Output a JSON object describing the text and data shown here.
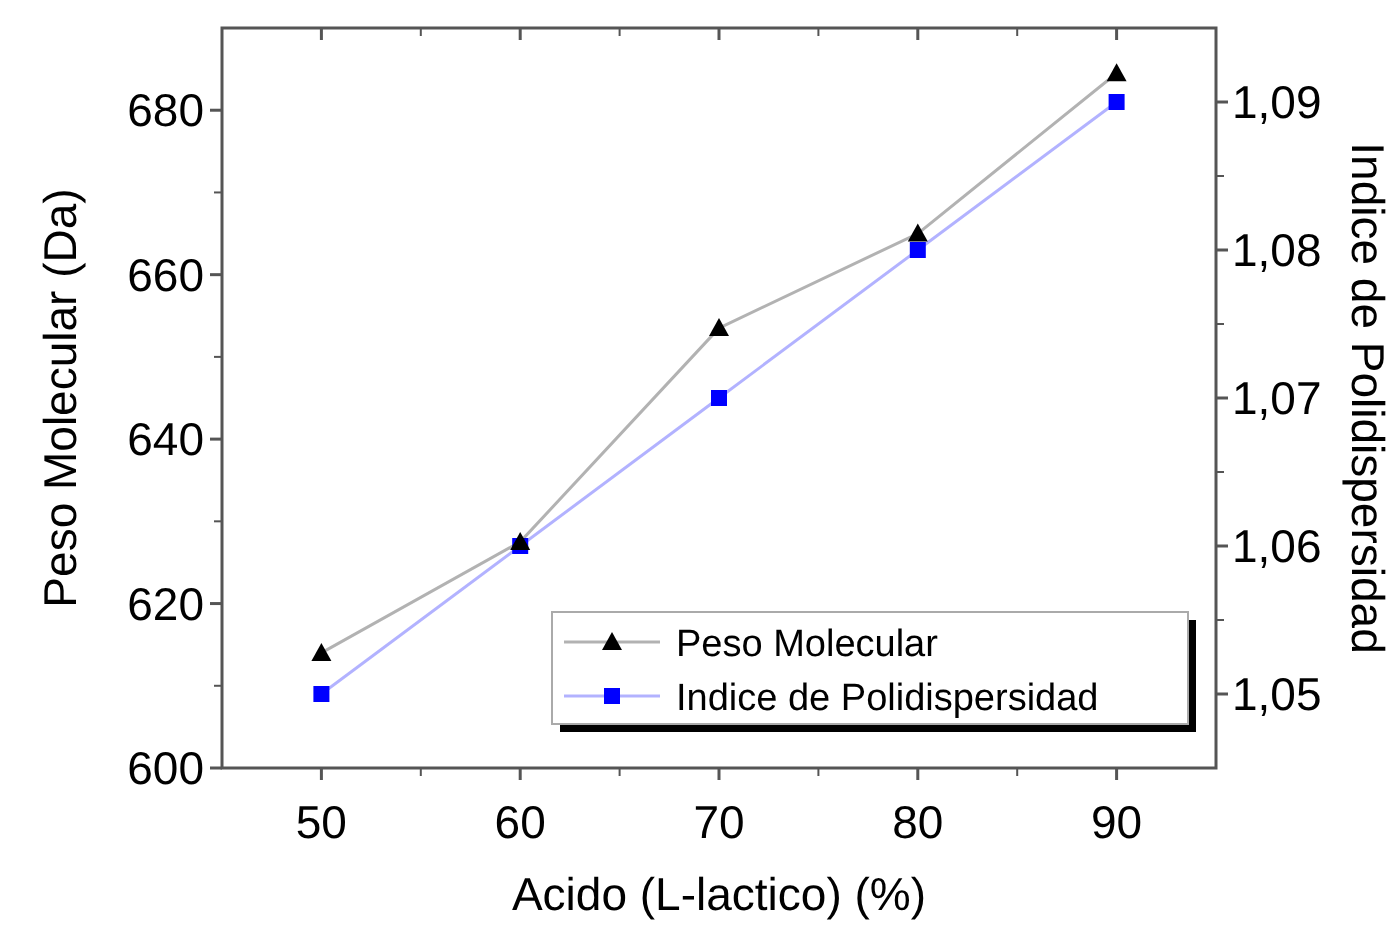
{
  "chart_data": {
    "type": "line",
    "xlabel": "Acido (L-lactico) (%)",
    "ylabel": "Peso Molecular (Da)",
    "y2label": "Indice de Polidispersidad",
    "x": [
      50,
      60,
      70,
      80,
      90
    ],
    "xlim": [
      45,
      95
    ],
    "xticks": [
      50,
      60,
      70,
      80,
      90
    ],
    "ylim": [
      600,
      690
    ],
    "yticks": [
      600,
      620,
      640,
      660,
      680
    ],
    "y2lim": [
      1.045,
      1.095
    ],
    "y2ticks": [
      {
        "value": 1.05,
        "label": "1,05"
      },
      {
        "value": 1.06,
        "label": "1,06"
      },
      {
        "value": 1.07,
        "label": "1,07"
      },
      {
        "value": 1.08,
        "label": "1,08"
      },
      {
        "value": 1.09,
        "label": "1,09"
      }
    ],
    "series": [
      {
        "name": "Peso Molecular",
        "color": "#000000",
        "marker": "triangle",
        "values": [
          614,
          627.5,
          653.5,
          665,
          684.5
        ]
      },
      {
        "name": "Indice de Polidispersidad",
        "color": "#0000ff",
        "marker": "square",
        "axis": "y2",
        "values": [
          1.05,
          1.06,
          1.07,
          1.08,
          1.09
        ]
      }
    ],
    "legend": "bottom right",
    "grid": false,
    "line_style": "solid"
  }
}
